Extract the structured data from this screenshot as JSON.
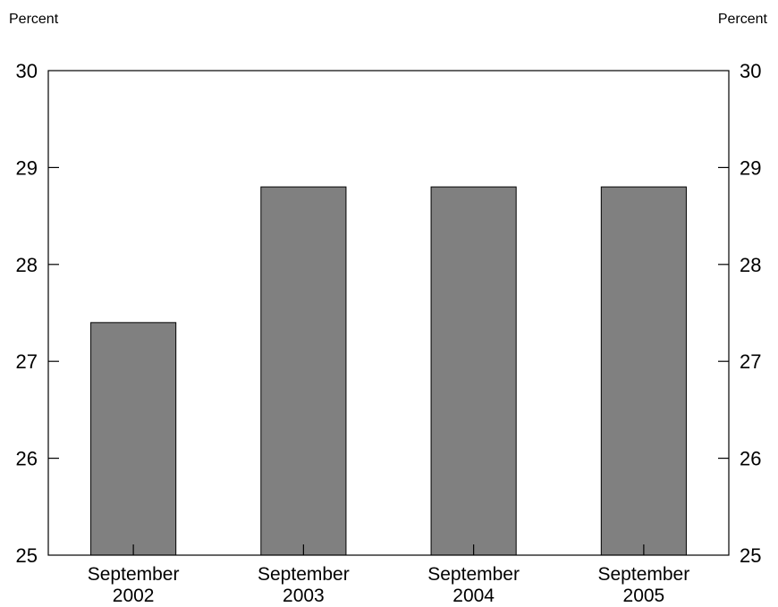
{
  "chart_data": {
    "type": "bar",
    "title": "",
    "xlabel": "",
    "ylabel_left": "Percent",
    "ylabel_right": "Percent",
    "categories": [
      [
        "September",
        "2002"
      ],
      [
        "September",
        "2003"
      ],
      [
        "September",
        "2004"
      ],
      [
        "September",
        "2005"
      ]
    ],
    "values": [
      27.4,
      28.8,
      28.8,
      28.8
    ],
    "ylim": [
      25,
      30
    ],
    "yticks": [
      25,
      26,
      27,
      28,
      29,
      30
    ],
    "grid": false,
    "legend": "none",
    "bar_color": "#808080"
  }
}
